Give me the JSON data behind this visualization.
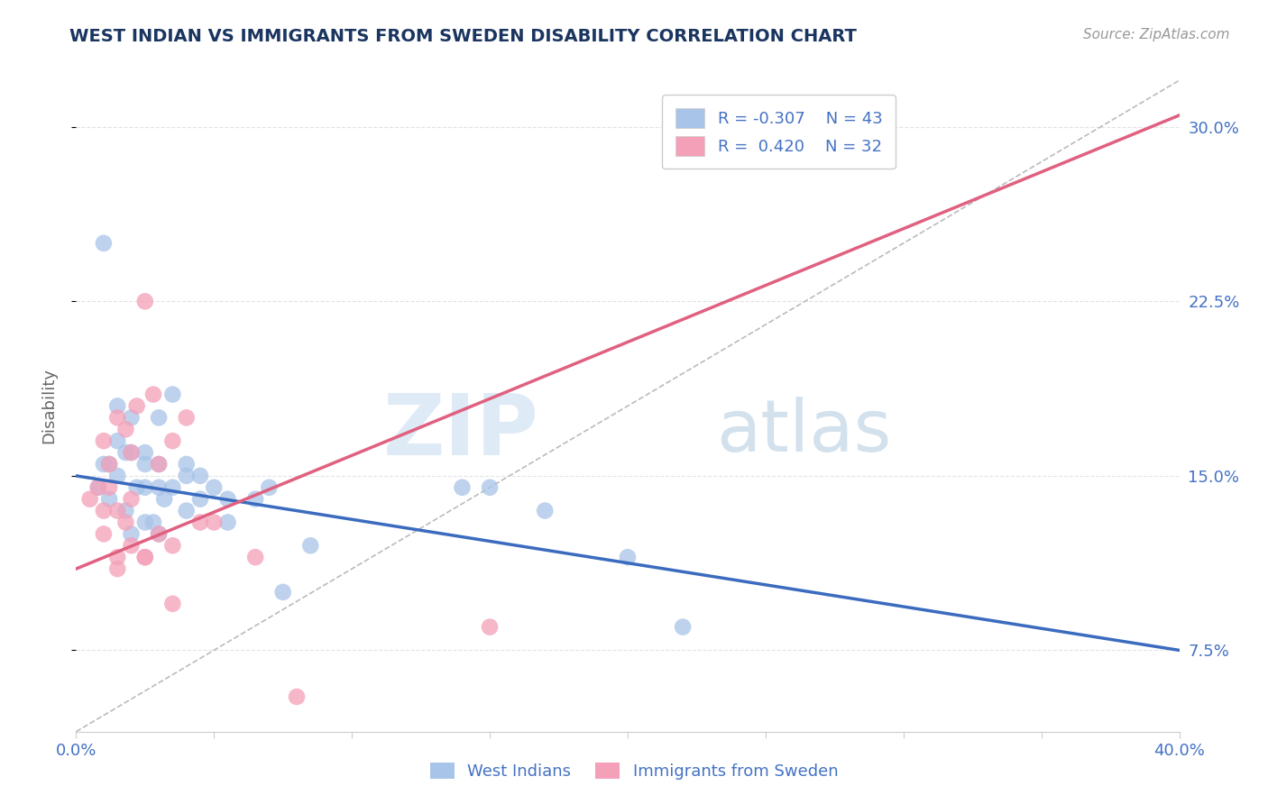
{
  "title": "WEST INDIAN VS IMMIGRANTS FROM SWEDEN DISABILITY CORRELATION CHART",
  "source": "Source: ZipAtlas.com",
  "ylabel": "Disability",
  "xmin": 0.0,
  "xmax": 40.0,
  "ymin": 4.0,
  "ymax": 32.0,
  "yticks": [
    7.5,
    15.0,
    22.5,
    30.0
  ],
  "ytick_labels": [
    "7.5%",
    "15.0%",
    "22.5%",
    "30.0%"
  ],
  "xticks": [
    0.0,
    5.0,
    10.0,
    15.0,
    20.0,
    25.0,
    30.0,
    35.0,
    40.0
  ],
  "color_blue": "#A8C4E8",
  "color_pink": "#F4A0B8",
  "color_blue_line": "#3B6BBF",
  "color_pink_line": "#E06080",
  "color_dashed": "#BBBBBB",
  "watermark_zip": "ZIP",
  "watermark_atlas": "atlas",
  "background_color": "#FFFFFF",
  "grid_color": "#E0E0E0",
  "title_color": "#1a3560",
  "axis_label_color": "#666666",
  "tick_label_color": "#4472C4",
  "blue_line_x0": 0.0,
  "blue_line_y0": 15.0,
  "blue_line_x1": 40.0,
  "blue_line_y1": 7.5,
  "pink_line_x0": 0.0,
  "pink_line_y0": 11.0,
  "pink_line_x1": 40.0,
  "pink_line_y1": 30.5,
  "dashed_line_x0": 0.0,
  "dashed_line_y0": 4.0,
  "dashed_line_x1": 40.0,
  "dashed_line_y1": 32.0,
  "blue_scatter_x": [
    1.0,
    1.5,
    1.5,
    2.0,
    2.5,
    3.0,
    3.5,
    1.0,
    1.5,
    2.0,
    2.5,
    3.0,
    4.0,
    1.2,
    1.8,
    2.2,
    2.8,
    3.2,
    4.5,
    5.0,
    0.8,
    1.2,
    1.8,
    2.5,
    3.0,
    4.0,
    5.5,
    7.0,
    8.5,
    14.0,
    15.0,
    17.0,
    20.0,
    22.0,
    3.5,
    4.5,
    5.5,
    6.5,
    7.5,
    2.0,
    2.5,
    3.0,
    4.0
  ],
  "blue_scatter_y": [
    25.0,
    18.0,
    16.5,
    17.5,
    16.0,
    17.5,
    18.5,
    15.5,
    15.0,
    16.0,
    14.5,
    15.5,
    15.0,
    14.0,
    13.5,
    14.5,
    13.0,
    14.0,
    15.0,
    14.5,
    14.5,
    15.5,
    16.0,
    15.5,
    14.5,
    15.5,
    14.0,
    14.5,
    12.0,
    14.5,
    14.5,
    13.5,
    11.5,
    8.5,
    14.5,
    14.0,
    13.0,
    14.0,
    10.0,
    12.5,
    13.0,
    12.5,
    13.5
  ],
  "pink_scatter_x": [
    0.5,
    1.0,
    1.5,
    2.0,
    0.8,
    1.2,
    1.8,
    2.2,
    2.8,
    3.5,
    4.0,
    1.0,
    1.5,
    2.0,
    3.0,
    1.5,
    2.0,
    2.5,
    3.5,
    5.0,
    1.2,
    1.8,
    1.0,
    1.5,
    2.5,
    3.0,
    4.5,
    6.5,
    2.5,
    3.5,
    15.0,
    8.0
  ],
  "pink_scatter_y": [
    14.0,
    16.5,
    17.5,
    16.0,
    14.5,
    15.5,
    17.0,
    18.0,
    18.5,
    16.5,
    17.5,
    13.5,
    11.5,
    14.0,
    15.5,
    13.5,
    12.0,
    11.5,
    12.0,
    13.0,
    14.5,
    13.0,
    12.5,
    11.0,
    11.5,
    12.5,
    13.0,
    11.5,
    22.5,
    9.5,
    8.5,
    5.5
  ]
}
